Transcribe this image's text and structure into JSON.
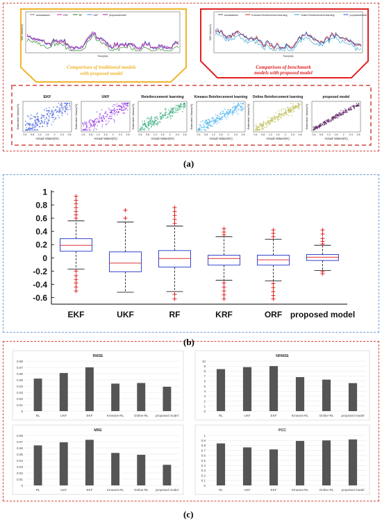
{
  "panel_labels": {
    "a": "(a)",
    "b": "(b)",
    "c": "(c)"
  },
  "panel_a": {
    "left_caption": "Comparison of traditional models with proposed model",
    "right_caption": "Comparison of benchmark models with proposed model",
    "left_legend": [
      "actualvalues",
      "EKF",
      "RF",
      "UKF",
      "proposedmodel"
    ],
    "right_legend": [
      "actualvalues",
      "Kmeans Reinforcement learning",
      "Online Reinforcement learning",
      "proposedmodel"
    ],
    "left_xlabel": "Time(min)",
    "right_xlabel": "Time(min)",
    "left_ylabel": "SOC Values(%)",
    "right_ylabel": "SOC Values(%)",
    "colors": {
      "caption_left": "#f0b428",
      "caption_right": "#e02020"
    },
    "scatter_titles": [
      "EKF",
      "UKF",
      "Reinforcement learning",
      "Kmeans Reinforcement learning",
      "Online Reinforcement learning",
      "proposed model"
    ],
    "scatter_xlabel": "Actual Values(%)",
    "scatter_ylabel": "Estimated Values(%)",
    "scatter_colors": [
      "#2a4ad8",
      "#8a2be2",
      "#1aa36b",
      "#33aaee",
      "#b5b843",
      "#5a1a60"
    ],
    "scatter_ticks": [
      "0.4",
      "0.8",
      "1.2",
      "1.6",
      "2",
      "2.4",
      "2.8"
    ]
  },
  "chart_data": [
    {
      "type": "line",
      "title": "",
      "xlabel": "Time(min)",
      "ylabel": "SOC Values(%)",
      "series": [
        {
          "name": "actualvalues",
          "color": "#777777"
        },
        {
          "name": "EKF",
          "color": "#c81ea8"
        },
        {
          "name": "RF",
          "color": "#1e7a1e"
        },
        {
          "name": "UKF",
          "color": "#4d7cf0"
        },
        {
          "name": "proposedmodel",
          "color": "#9b1a9b"
        }
      ]
    },
    {
      "type": "line",
      "title": "",
      "xlabel": "Time(min)",
      "ylabel": "SOC Values(%)",
      "series": [
        {
          "name": "actualvalues",
          "color": "#555555"
        },
        {
          "name": "Kmeans Reinforcement learning",
          "color": "#e02020"
        },
        {
          "name": "Online Reinforcement learning",
          "color": "#20a0c8"
        },
        {
          "name": "proposedmodel",
          "color": "#2050d0"
        }
      ]
    },
    {
      "type": "box",
      "title": "",
      "categories": [
        "EKF",
        "UKF",
        "RF",
        "KRF",
        "ORF",
        "proposed model"
      ],
      "ylim": [
        -0.7,
        1.0
      ],
      "yticks": [
        "1",
        "0.8",
        "0.6",
        "0.4",
        "0.2",
        "0",
        "-0.2",
        "-0.4",
        "-0.6"
      ],
      "boxes": [
        {
          "median": 0.19,
          "q1": 0.1,
          "q3": 0.29,
          "whisker_low": -0.17,
          "whisker_high": 0.56,
          "outliers_low": [
            -0.2,
            -0.27,
            -0.33,
            -0.38,
            -0.44,
            -0.5
          ],
          "outliers_high": [
            0.6,
            0.65,
            0.7,
            0.76,
            0.82,
            0.87,
            0.93
          ]
        },
        {
          "median": -0.08,
          "q1": -0.21,
          "q3": 0.09,
          "whisker_low": -0.52,
          "whisker_high": 0.54,
          "outliers_low": [],
          "outliers_high": [
            0.6,
            0.72
          ]
        },
        {
          "median": -0.01,
          "q1": -0.14,
          "q3": 0.11,
          "whisker_low": -0.51,
          "whisker_high": 0.48,
          "outliers_low": [
            -0.55,
            -0.62
          ],
          "outliers_high": [
            0.52,
            0.58,
            0.64,
            0.7,
            0.76
          ]
        },
        {
          "median": -0.01,
          "q1": -0.11,
          "q3": 0.04,
          "whisker_low": -0.34,
          "whisker_high": 0.32,
          "outliers_low": [
            -0.38,
            -0.44,
            -0.5,
            -0.56,
            -0.62
          ],
          "outliers_high": [
            0.35,
            0.39,
            0.44
          ]
        },
        {
          "median": -0.03,
          "q1": -0.11,
          "q3": 0.04,
          "whisker_low": -0.35,
          "whisker_high": 0.28,
          "outliers_low": [
            -0.39,
            -0.45,
            -0.51,
            -0.57,
            -0.62
          ],
          "outliers_high": [
            0.32,
            0.37,
            0.42
          ]
        },
        {
          "median": 0.01,
          "q1": -0.04,
          "q3": 0.05,
          "whisker_low": -0.19,
          "whisker_high": 0.19,
          "outliers_low": [
            -0.21,
            -0.24
          ],
          "outliers_high": [
            0.21,
            0.25,
            0.29,
            0.36,
            0.42
          ]
        }
      ],
      "colors": {
        "box": "#3344cc",
        "median": "#e03030",
        "outlier": "#e02020"
      }
    },
    {
      "type": "bar",
      "title": "RMSE",
      "categories": [
        "RL",
        "UKF",
        "EKF",
        "Kmeans-RL",
        "Online-RL",
        "proposed model"
      ],
      "values": [
        0.052,
        0.061,
        0.07,
        0.044,
        0.045,
        0.039
      ],
      "ylim": [
        0,
        0.08
      ],
      "yticks": [
        "0.08",
        "0.07",
        "0.06",
        "0.05",
        "0.04",
        "0.03",
        "0.02",
        "0.01",
        "0"
      ]
    },
    {
      "type": "bar",
      "title": "NRMSE",
      "categories": [
        "RL",
        "UKF",
        "EKF",
        "Kmeans-RL",
        "Online-RL",
        "proposed model"
      ],
      "values": [
        8.4,
        8.8,
        9.0,
        6.8,
        6.3,
        5.6
      ],
      "ylim": [
        0,
        10
      ],
      "yticks": [
        "10",
        "9",
        "8",
        "7",
        "6",
        "5",
        "4",
        "3",
        "2",
        "1",
        "0"
      ]
    },
    {
      "type": "bar",
      "title": "MRE",
      "categories": [
        "RL",
        "UKF",
        "EKF",
        "Kmeans-RL",
        "Online-RL",
        "proposed model"
      ],
      "values": [
        0.064,
        0.069,
        0.073,
        0.052,
        0.049,
        0.033
      ],
      "ylim": [
        0,
        0.08
      ],
      "yticks": [
        "0.08",
        "0.07",
        "0.06",
        "0.05",
        "0.04",
        "0.03",
        "0.02",
        "0.01",
        "0"
      ]
    },
    {
      "type": "bar",
      "title": "PCC",
      "categories": [
        "RL",
        "UKF",
        "EKF",
        "Kmeans-RL",
        "Online-RL",
        "proposed model"
      ],
      "values": [
        0.84,
        0.76,
        0.72,
        0.89,
        0.9,
        0.92
      ],
      "ylim": [
        0,
        1
      ],
      "yticks": [
        "1",
        "0.9",
        "0.8",
        "0.7",
        "0.6",
        "0.5",
        "0.4",
        "0.3",
        "0.2",
        "0.1",
        "0"
      ]
    }
  ]
}
